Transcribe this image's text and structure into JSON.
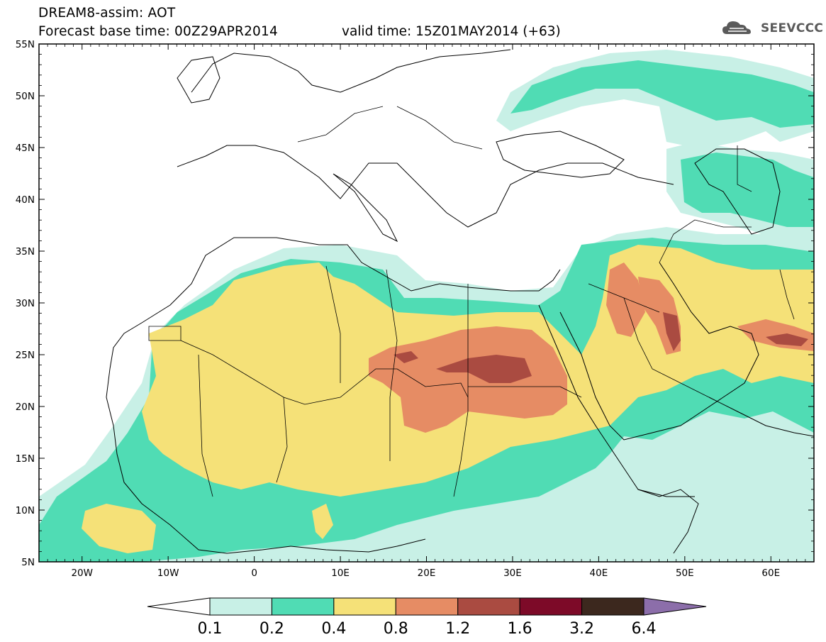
{
  "header": {
    "line1": "DREAM8-assim: AOT",
    "line2": "Forecast base time: 00Z29APR2014",
    "valid": "valid time: 15Z01MAY2014 (+63)"
  },
  "logo": {
    "text": "SEEVCCC",
    "icon": "cloud-icon"
  },
  "map": {
    "lat_labels": [
      "55N",
      "50N",
      "45N",
      "40N",
      "35N",
      "30N",
      "25N",
      "20N",
      "15N",
      "10N",
      "5N"
    ],
    "lon_labels": [
      "20W",
      "10W",
      "0",
      "10E",
      "20E",
      "30E",
      "40E",
      "50E",
      "60E"
    ],
    "extent": {
      "lon": [
        -25,
        65
      ],
      "lat": [
        5,
        55
      ]
    }
  },
  "colorbar": {
    "labels": [
      "0.1",
      "0.2",
      "0.4",
      "0.8",
      "1.2",
      "1.6",
      "3.2",
      "6.4"
    ],
    "colors": [
      "#ffffff",
      "#c8f0e6",
      "#50dcb4",
      "#f5e178",
      "#e68c64",
      "#aa4b41",
      "#7d0a28",
      "#3c281e",
      "#8c6eaa"
    ]
  }
}
